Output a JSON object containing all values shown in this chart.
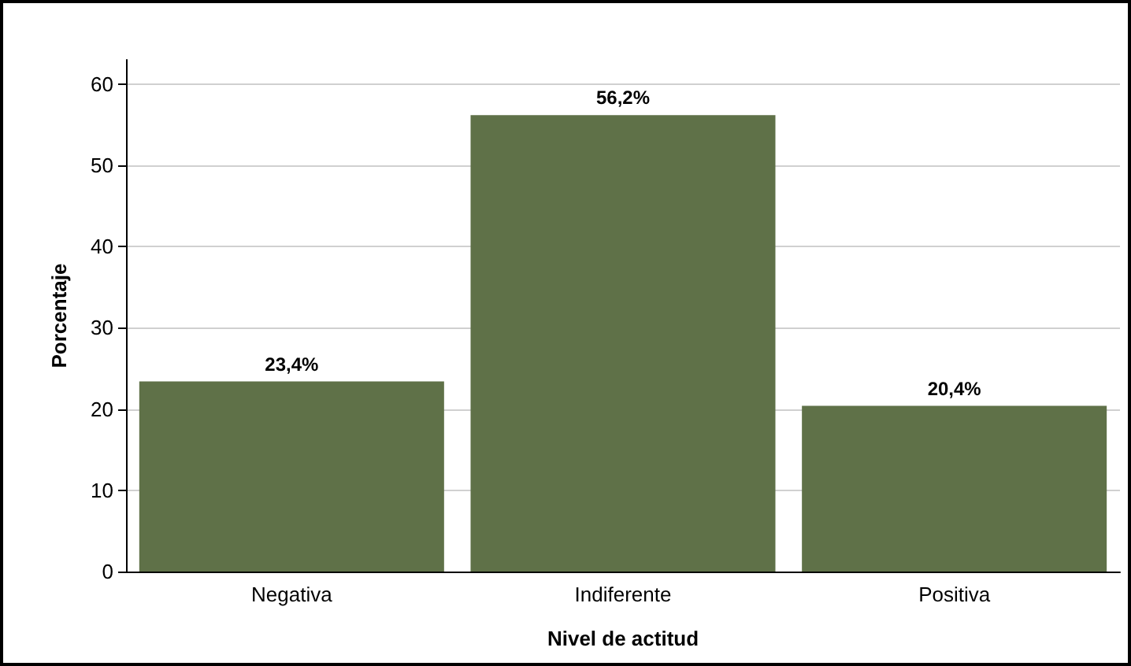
{
  "chart_data": {
    "type": "bar",
    "xlabel": "Nivel de actitud",
    "ylabel": "Porcentaje",
    "categories": [
      "Negativa",
      "Indiferente",
      "Positiva"
    ],
    "values": [
      23.4,
      56.2,
      20.4
    ],
    "value_labels": [
      "23,4%",
      "56,2%",
      "20,4%"
    ],
    "color": "#5f7148",
    "ylim": [
      0,
      63
    ],
    "yticks": [
      0,
      10,
      20,
      30,
      40,
      50,
      60
    ],
    "grid": "y"
  }
}
